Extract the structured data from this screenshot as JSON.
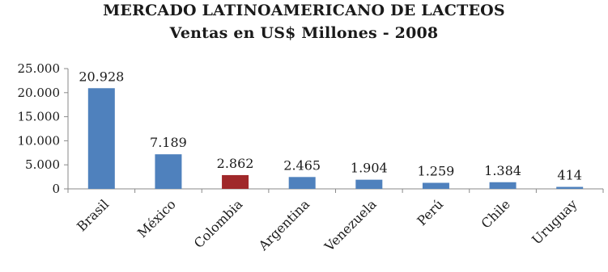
{
  "chart_data": {
    "type": "bar",
    "title": "MERCADO LATINOAMERICANO DE LACTEOS",
    "subtitle": "Ventas en US$ Millones - 2008",
    "xlabel": "",
    "ylabel": "",
    "categories": [
      "Brasil",
      "México",
      "Colombia",
      "Argentina",
      "Venezuela",
      "Perú",
      "Chile",
      "Uruguay"
    ],
    "values": [
      20928,
      7189,
      2862,
      2465,
      1904,
      1259,
      1384,
      414
    ],
    "value_labels": [
      "20.928",
      "7.189",
      "2.862",
      "2.465",
      "1.904",
      "1.259",
      "1.384",
      "414"
    ],
    "ylim": [
      0,
      25000
    ],
    "yticks": [
      0,
      5000,
      10000,
      15000,
      20000,
      25000
    ],
    "ytick_labels": [
      "0",
      "5.000",
      "10.000",
      "15.000",
      "20.000",
      "25.000"
    ],
    "grid": false,
    "legend": "none",
    "colors": {
      "default": "#4f81bd",
      "highlight": "#a0282a",
      "highlight_category": "Colombia"
    }
  }
}
